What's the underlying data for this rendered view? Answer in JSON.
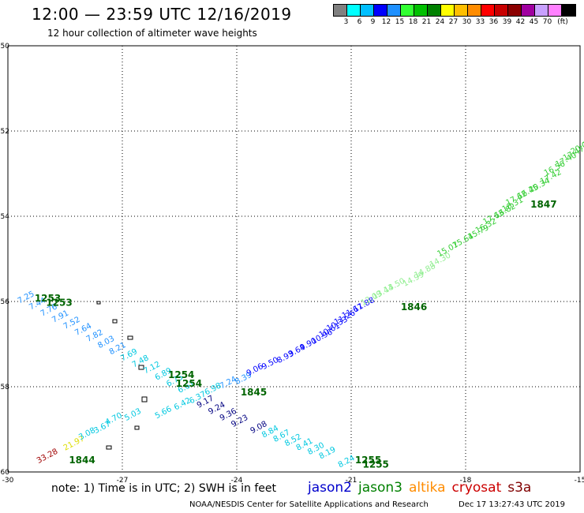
{
  "header": {
    "title": "12:00 — 23:59 UTC 12/16/2019",
    "subtitle": "12 hour collection of altimeter wave heights"
  },
  "legend": {
    "colors": [
      "#808080",
      "#00ffff",
      "#00bfff",
      "#0000ff",
      "#1e90ff",
      "#32ff32",
      "#00c000",
      "#008000",
      "#ffff00",
      "#ffbf00",
      "#ff8c00",
      "#ff0000",
      "#c80000",
      "#8b0000",
      "#a000a0",
      "#c8a0ff",
      "#ff80ff",
      "#000000"
    ],
    "labels": [
      "3",
      "6",
      "9",
      "12",
      "15",
      "18",
      "21",
      "24",
      "27",
      "30",
      "33",
      "36",
      "39",
      "42",
      "45",
      "70"
    ],
    "unit": "(ft)"
  },
  "chart_data": {
    "type": "scatter",
    "xlim": [
      -30,
      -15
    ],
    "ylim": [
      -60,
      -50
    ],
    "x_ticks": [
      "-30",
      "-27",
      "-24",
      "-21",
      "-18",
      "-15"
    ],
    "y_ticks": [
      "-50",
      "-52",
      "-54",
      "-56",
      "-58",
      "-60"
    ],
    "grid": true,
    "time_labels": [
      {
        "text": "1253",
        "lon": -29.3,
        "lat": -56.0,
        "color": "#006400"
      },
      {
        "text": "1253",
        "lon": -29.0,
        "lat": -56.1,
        "color": "#006400"
      },
      {
        "text": "1254",
        "lon": -25.8,
        "lat": -57.8,
        "color": "#006400"
      },
      {
        "text": "1254",
        "lon": -25.6,
        "lat": -58.0,
        "color": "#006400"
      },
      {
        "text": "1845",
        "lon": -23.9,
        "lat": -58.2,
        "color": "#006400"
      },
      {
        "text": "1846",
        "lon": -19.7,
        "lat": -56.2,
        "color": "#006400"
      },
      {
        "text": "1847",
        "lon": -16.3,
        "lat": -53.8,
        "color": "#006400"
      },
      {
        "text": "1255",
        "lon": -20.9,
        "lat": -59.8,
        "color": "#006400"
      },
      {
        "text": "1255",
        "lon": -20.7,
        "lat": -59.9,
        "color": "#006400"
      },
      {
        "text": "1844",
        "lon": -28.4,
        "lat": -59.8,
        "color": "#006400"
      }
    ],
    "swh_labels": [
      {
        "text": "33.28",
        "lon": -29.2,
        "lat": -59.8,
        "color": "#a00000"
      },
      {
        "text": "21.97",
        "lon": -28.5,
        "lat": -59.5,
        "color": "#dddd00"
      },
      {
        "text": "3.08",
        "lon": -28.1,
        "lat": -59.25,
        "color": "#00c8e0"
      },
      {
        "text": "3.67",
        "lon": -27.7,
        "lat": -59.1,
        "color": "#00c8e0"
      },
      {
        "text": "4.70",
        "lon": -27.4,
        "lat": -58.9,
        "color": "#00c8e0"
      },
      {
        "text": "5.03",
        "lon": -26.9,
        "lat": -58.8,
        "color": "#00c8e0"
      },
      {
        "text": "5.66",
        "lon": -26.1,
        "lat": -58.75,
        "color": "#00c8e0"
      },
      {
        "text": "6.42",
        "lon": -25.6,
        "lat": -58.55,
        "color": "#00c8e0"
      },
      {
        "text": "6.37",
        "lon": -25.2,
        "lat": -58.4,
        "color": "#00c8e0"
      },
      {
        "text": "6.98",
        "lon": -24.8,
        "lat": -58.2,
        "color": "#00c8e0"
      },
      {
        "text": "7.24",
        "lon": -24.4,
        "lat": -58.05,
        "color": "#1e90ff"
      },
      {
        "text": "8.39",
        "lon": -24.0,
        "lat": -57.95,
        "color": "#1e90ff"
      },
      {
        "text": "9.06",
        "lon": -23.7,
        "lat": -57.75,
        "color": "#0000ff"
      },
      {
        "text": "9.50",
        "lon": -23.3,
        "lat": -57.6,
        "color": "#0000ff"
      },
      {
        "text": "8.93",
        "lon": -22.9,
        "lat": -57.45,
        "color": "#0000ff"
      },
      {
        "text": "9.64",
        "lon": -22.6,
        "lat": -57.3,
        "color": "#0000ff"
      },
      {
        "text": "9.90",
        "lon": -22.3,
        "lat": -57.15,
        "color": "#0000ff"
      },
      {
        "text": "10.96",
        "lon": -22.0,
        "lat": -57.0,
        "color": "#0000ff"
      },
      {
        "text": "10.61",
        "lon": -21.8,
        "lat": -56.85,
        "color": "#0000ff"
      },
      {
        "text": "10.33",
        "lon": -21.6,
        "lat": -56.7,
        "color": "#0000ff"
      },
      {
        "text": "11.26",
        "lon": -21.4,
        "lat": -56.55,
        "color": "#0000ff"
      },
      {
        "text": "11.67",
        "lon": -21.2,
        "lat": -56.4,
        "color": "#0000ff"
      },
      {
        "text": "11.88",
        "lon": -20.9,
        "lat": -56.25,
        "color": "#0000ff"
      },
      {
        "text": "12.09",
        "lon": -20.7,
        "lat": -56.1,
        "color": "#90ee90"
      },
      {
        "text": "13.44",
        "lon": -20.4,
        "lat": -55.95,
        "color": "#90ee90"
      },
      {
        "text": "13.50",
        "lon": -20.1,
        "lat": -55.8,
        "color": "#90ee90"
      },
      {
        "text": "14.99",
        "lon": -19.6,
        "lat": -55.65,
        "color": "#90ee90"
      },
      {
        "text": "14.88",
        "lon": -19.3,
        "lat": -55.45,
        "color": "#90ee90"
      },
      {
        "text": "14.30",
        "lon": -18.9,
        "lat": -55.2,
        "color": "#90ee90"
      },
      {
        "text": "15.07",
        "lon": -18.7,
        "lat": -54.95,
        "color": "#32cd32"
      },
      {
        "text": "15.64",
        "lon": -18.3,
        "lat": -54.75,
        "color": "#32cd32"
      },
      {
        "text": "15.79",
        "lon": -17.9,
        "lat": -54.55,
        "color": "#32cd32"
      },
      {
        "text": "16.32",
        "lon": -17.7,
        "lat": -54.4,
        "color": "#32cd32"
      },
      {
        "text": "17.63",
        "lon": -17.5,
        "lat": -54.2,
        "color": "#32cd32"
      },
      {
        "text": "16.82",
        "lon": -17.2,
        "lat": -54.05,
        "color": "#32cd32"
      },
      {
        "text": "16.31",
        "lon": -17.0,
        "lat": -53.9,
        "color": "#32cd32"
      },
      {
        "text": "17.62",
        "lon": -16.9,
        "lat": -53.75,
        "color": "#32cd32"
      },
      {
        "text": "16.45",
        "lon": -16.6,
        "lat": -53.6,
        "color": "#32cd32"
      },
      {
        "text": "20.34",
        "lon": -16.3,
        "lat": -53.45,
        "color": "#32cd32"
      },
      {
        "text": "17.42",
        "lon": -16.0,
        "lat": -53.25,
        "color": "#32cd32"
      },
      {
        "text": "16.56",
        "lon": -15.9,
        "lat": -53.05,
        "color": "#32cd32"
      },
      {
        "text": "17.40",
        "lon": -15.6,
        "lat": -52.85,
        "color": "#32cd32"
      },
      {
        "text": "17.47",
        "lon": -15.4,
        "lat": -52.7,
        "color": "#32cd32"
      },
      {
        "text": "20.05",
        "lon": -15.2,
        "lat": -52.55,
        "color": "#32cd32"
      },
      {
        "text": "16.34",
        "lon": -14.9,
        "lat": -52.4,
        "color": "#32cd32"
      },
      {
        "text": "20.82",
        "lon": -14.6,
        "lat": -52.25,
        "color": "#32cd32"
      },
      {
        "text": "18.",
        "lon": -14.3,
        "lat": -52.1,
        "color": "#32cd32"
      },
      {
        "text": "1",
        "lon": -14.1,
        "lat": -51.95,
        "color": "#32cd32"
      },
      {
        "text": "7.25",
        "lon": -29.7,
        "lat": -56.05,
        "color": "#1e90ff"
      },
      {
        "text": "7.44",
        "lon": -29.4,
        "lat": -56.2,
        "color": "#1e90ff"
      },
      {
        "text": "7.76",
        "lon": -29.1,
        "lat": -56.35,
        "color": "#1e90ff"
      },
      {
        "text": "7.91",
        "lon": -28.8,
        "lat": -56.5,
        "color": "#1e90ff"
      },
      {
        "text": "7.52",
        "lon": -28.5,
        "lat": -56.65,
        "color": "#1e90ff"
      },
      {
        "text": "7.64",
        "lon": -28.2,
        "lat": -56.8,
        "color": "#1e90ff"
      },
      {
        "text": "7.82",
        "lon": -27.9,
        "lat": -56.95,
        "color": "#1e90ff"
      },
      {
        "text": "8.03",
        "lon": -27.6,
        "lat": -57.1,
        "color": "#1e90ff"
      },
      {
        "text": "8.21",
        "lon": -27.3,
        "lat": -57.25,
        "color": "#1e90ff"
      },
      {
        "text": "7.69",
        "lon": -27.0,
        "lat": -57.4,
        "color": "#00c8e0"
      },
      {
        "text": "7.48",
        "lon": -26.7,
        "lat": -57.55,
        "color": "#00c8e0"
      },
      {
        "text": "7.12",
        "lon": -26.4,
        "lat": -57.7,
        "color": "#00c8e0"
      },
      {
        "text": "6.89",
        "lon": -26.1,
        "lat": -57.85,
        "color": "#00c8e0"
      },
      {
        "text": "6.75",
        "lon": -25.8,
        "lat": -58.0,
        "color": "#00c8e0"
      },
      {
        "text": "6.61",
        "lon": -25.5,
        "lat": -58.15,
        "color": "#00c8e0"
      },
      {
        "text": "9.17",
        "lon": -25.0,
        "lat": -58.5,
        "color": "#000080"
      },
      {
        "text": "9.24",
        "lon": -24.7,
        "lat": -58.65,
        "color": "#000080"
      },
      {
        "text": "9.36",
        "lon": -24.4,
        "lat": -58.8,
        "color": "#000080"
      },
      {
        "text": "9.23",
        "lon": -24.1,
        "lat": -58.95,
        "color": "#000080"
      },
      {
        "text": "9.08",
        "lon": -23.6,
        "lat": -59.1,
        "color": "#000080"
      },
      {
        "text": "8.84",
        "lon": -23.3,
        "lat": -59.2,
        "color": "#00c8e0"
      },
      {
        "text": "8.67",
        "lon": -23.0,
        "lat": -59.3,
        "color": "#00c8e0"
      },
      {
        "text": "8.52",
        "lon": -22.7,
        "lat": -59.4,
        "color": "#00c8e0"
      },
      {
        "text": "8.41",
        "lon": -22.4,
        "lat": -59.5,
        "color": "#00c8e0"
      },
      {
        "text": "8.30",
        "lon": -22.1,
        "lat": -59.6,
        "color": "#00c8e0"
      },
      {
        "text": "8.19",
        "lon": -21.8,
        "lat": -59.7,
        "color": "#00c8e0"
      },
      {
        "text": "8.24",
        "lon": -21.3,
        "lat": -59.9,
        "color": "#00c8e0"
      }
    ]
  },
  "footer": {
    "note": "note:  1) Time is in UTC;  2) SWH is in feet",
    "satellites": [
      {
        "name": "jason2",
        "color": "#0000cc"
      },
      {
        "name": "jason3",
        "color": "#008000"
      },
      {
        "name": "altika",
        "color": "#ff8c00"
      },
      {
        "name": "cryosat",
        "color": "#cc0000"
      },
      {
        "name": "s3a",
        "color": "#800000"
      }
    ],
    "credit": "NOAA/NESDIS Center for Satellite Applications and Research",
    "timestamp": "Dec 17 13:27:43 UTC 2019"
  }
}
